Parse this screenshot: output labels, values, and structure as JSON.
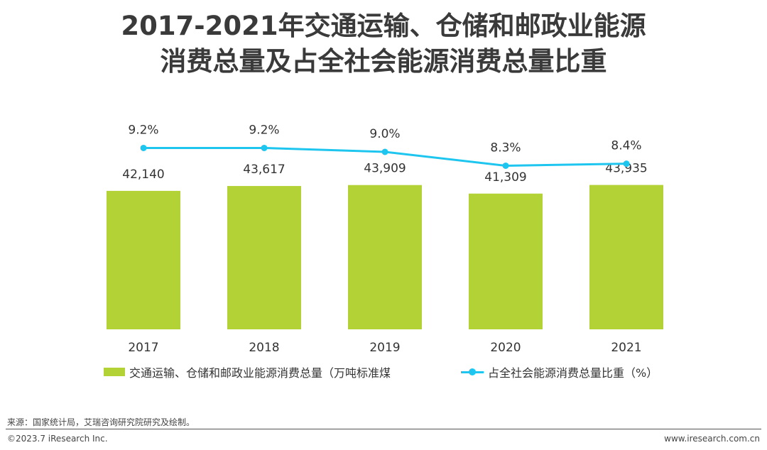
{
  "title_line1": "2017-2021年交通运输、仓储和邮政业能源",
  "title_line2": "消费总量及占全社会能源消费总量比重",
  "chart_data": {
    "type": "bar",
    "categories": [
      "2017",
      "2018",
      "2019",
      "2020",
      "2021"
    ],
    "series": [
      {
        "name": "交通运输、仓储和邮政业能源消费总量（万吨标准煤",
        "type": "bar",
        "values": [
          42140,
          43617,
          43909,
          41309,
          43935
        ],
        "labels": [
          "42,140",
          "43,617",
          "43,909",
          "41,309",
          "43,935"
        ],
        "color": "#b2d235"
      },
      {
        "name": "占全社会能源消费总量比重（%）",
        "type": "line",
        "values": [
          9.2,
          9.2,
          9.0,
          8.3,
          8.4
        ],
        "labels": [
          "9.2%",
          "9.2%",
          "9.0%",
          "8.3%",
          "8.4%"
        ],
        "color": "#1ec6ef"
      }
    ],
    "ylim_bar": [
      0,
      54000
    ],
    "ylim_line": [
      0,
      10.8
    ],
    "legend_position": "bottom"
  },
  "footer": {
    "source": "来源：国家统计局，艾瑞咨询研究院研究及绘制。",
    "copyright": "©2023.7 iResearch Inc.",
    "website": "www.iresearch.com.cn"
  }
}
